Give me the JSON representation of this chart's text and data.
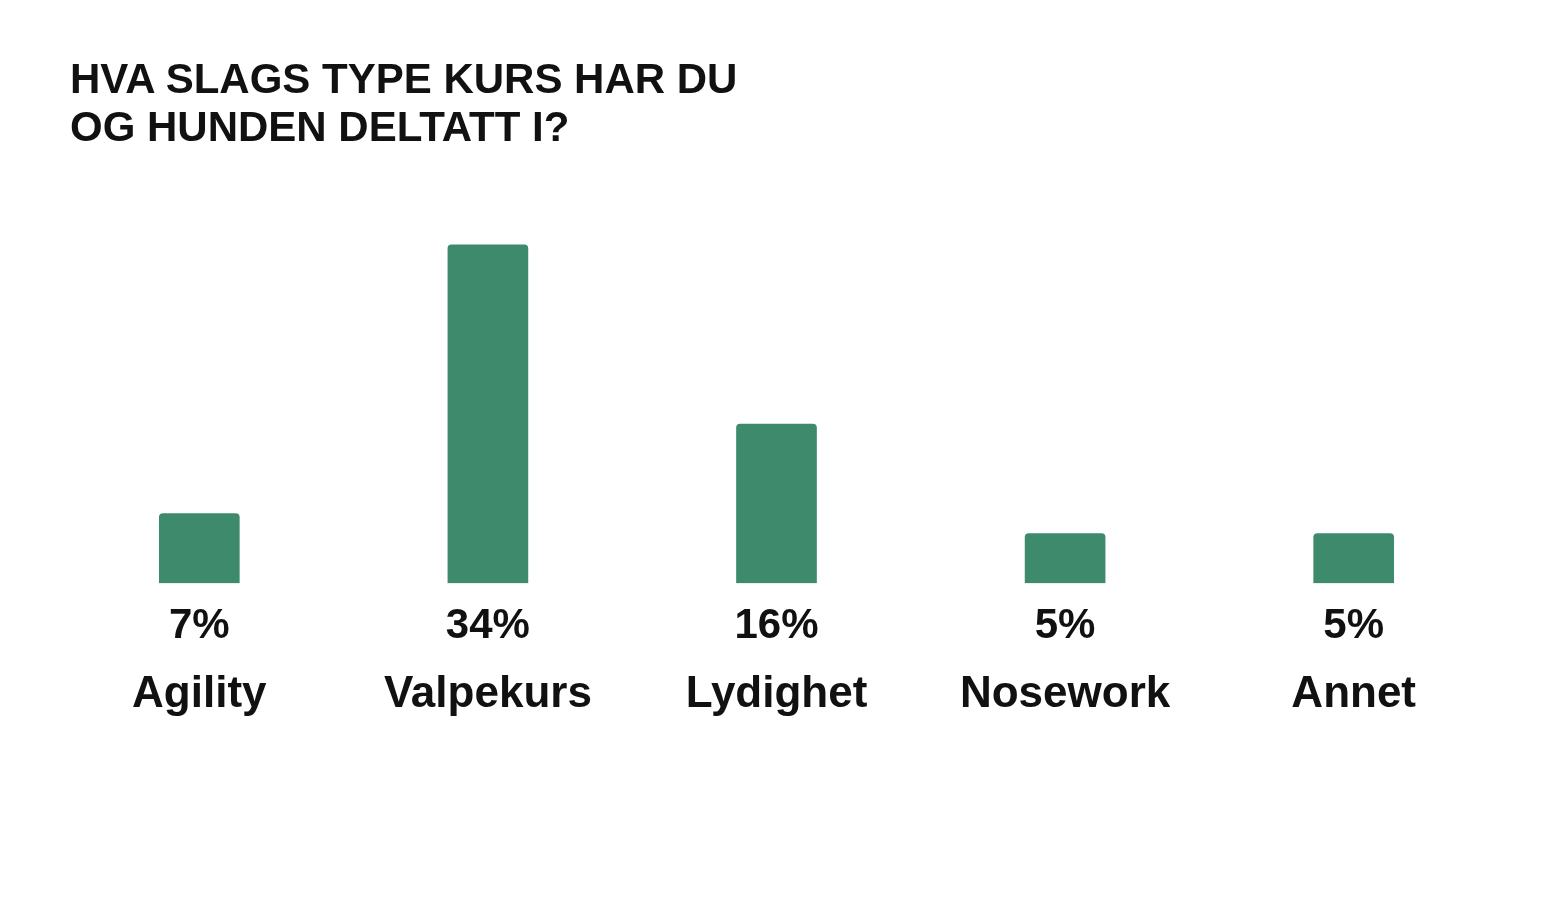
{
  "chart_data": {
    "type": "bar",
    "title": "HVA SLAGS TYPE KURS HAR DU OG HUNDEN DELTATT I?",
    "categories": [
      "Agility",
      "Valpekurs",
      "Lydighet",
      "Nosework",
      "Annet"
    ],
    "values": [
      7,
      34,
      16,
      5,
      5
    ],
    "value_labels": [
      "7%",
      "34%",
      "16%",
      "5%",
      "5%"
    ],
    "color": "#3e8a6c",
    "grid": false,
    "legend": false,
    "tick_labels": "x"
  }
}
